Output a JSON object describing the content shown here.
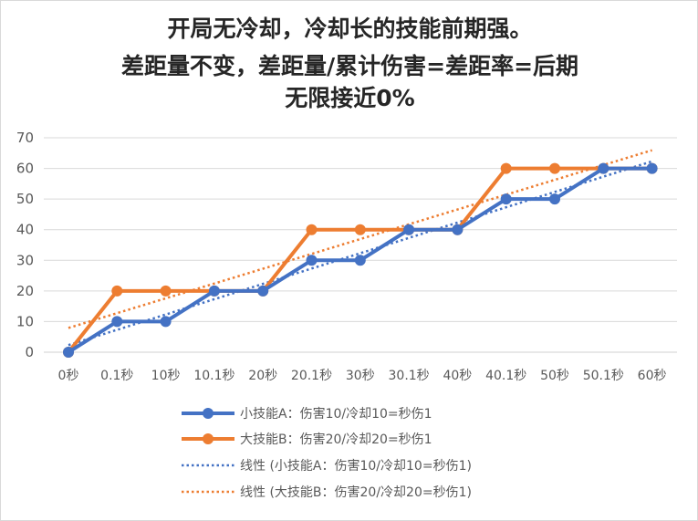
{
  "title_lines": [
    "开局无冷却，冷却长的技能前期强。",
    "差距量不变，差距量/累计伤害=差距率=后期",
    "无限接近0%"
  ],
  "chart_data": {
    "type": "line",
    "title": "开局无冷却，冷却长的技能前期强。 差距量不变，差距量/累计伤害=差距率=后期 无限接近0%",
    "categories": [
      "0秒",
      "0.1秒",
      "10秒",
      "10.1秒",
      "20秒",
      "20.1秒",
      "30秒",
      "30.1秒",
      "40秒",
      "40.1秒",
      "50秒",
      "50.1秒",
      "60秒"
    ],
    "series": [
      {
        "name": "小技能A：伤害10/冷却10=秒伤1",
        "color": "#4472c4",
        "values": [
          0,
          10,
          10,
          20,
          20,
          30,
          30,
          40,
          40,
          50,
          50,
          60,
          60
        ]
      },
      {
        "name": "大技能B：伤害20/冷却20=秒伤1",
        "color": "#ed7d31",
        "values": [
          0,
          20,
          20,
          20,
          20,
          40,
          40,
          40,
          40,
          60,
          60,
          60,
          60
        ]
      }
    ],
    "trendlines": [
      {
        "name": "线性 (小技能A：伤害10/冷却10=秒伤1)",
        "color": "#4472c4",
        "type": "linear",
        "of_series": 0
      },
      {
        "name": "线性 (大技能B：伤害20/冷却20=秒伤1)",
        "color": "#ed7d31",
        "type": "linear",
        "of_series": 1
      }
    ],
    "ylim": [
      0,
      70
    ],
    "yticks": [
      0,
      10,
      20,
      30,
      40,
      50,
      60,
      70
    ],
    "grid": true,
    "xlabel": "",
    "ylabel": "",
    "legend_position": "bottom"
  }
}
